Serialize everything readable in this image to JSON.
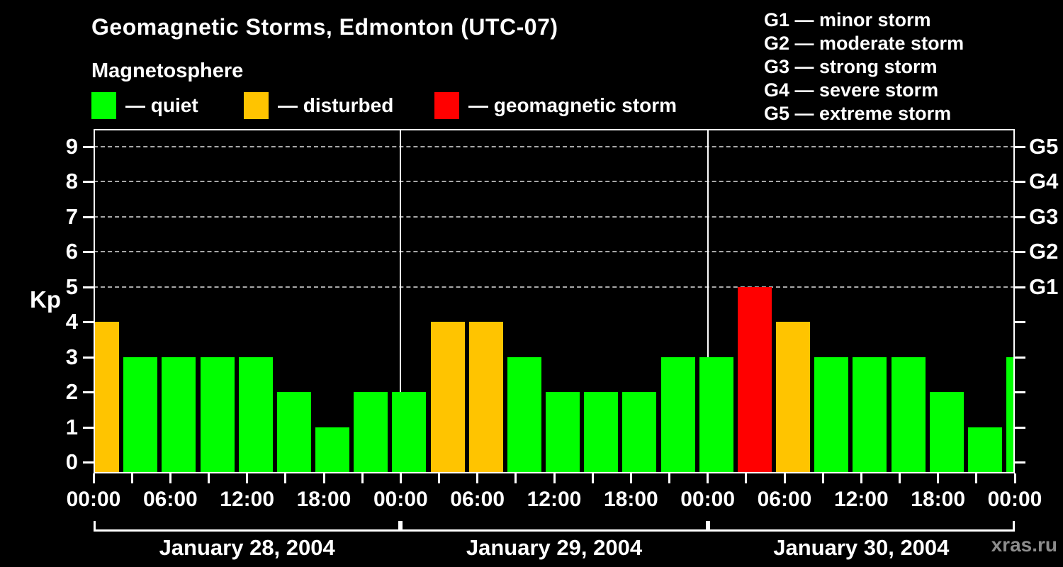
{
  "header": {
    "title": "Geomagnetic Storms, Edmonton (UTC-07)",
    "subtitle": "Magnetosphere"
  },
  "legend": {
    "items": [
      {
        "label": "— quiet",
        "color": "#00ff00"
      },
      {
        "label": "— disturbed",
        "color": "#ffc400"
      },
      {
        "label": "— geomagnetic storm",
        "color": "#ff0000"
      }
    ]
  },
  "storm_scale": {
    "items": [
      {
        "text": "G1 — minor storm"
      },
      {
        "text": "G2 — moderate storm"
      },
      {
        "text": "G3 — strong storm"
      },
      {
        "text": "G4 — severe storm"
      },
      {
        "text": "G5 — extreme storm"
      }
    ]
  },
  "watermark": "xras.ru",
  "chart_data": {
    "type": "bar",
    "title": "Geomagnetic Storms, Edmonton (UTC-07)",
    "subtitle": "Magnetosphere",
    "ylabel": "Kp",
    "y_ticks": [
      0,
      1,
      2,
      3,
      4,
      5,
      6,
      7,
      8,
      9
    ],
    "ylim": [
      -0.35,
      9.5
    ],
    "gridlines_kp": [
      5,
      6,
      7,
      8,
      9
    ],
    "grid": "dashed horizontal lines at Kp 5 through 9",
    "right_axis": [
      {
        "kp": 5,
        "label": "G1"
      },
      {
        "kp": 6,
        "label": "G2"
      },
      {
        "kp": 7,
        "label": "G3"
      },
      {
        "kp": 8,
        "label": "G4"
      },
      {
        "kp": 9,
        "label": "G5"
      }
    ],
    "x_tick_labels": [
      "00:00",
      "06:00",
      "12:00",
      "18:00",
      "00:00",
      "06:00",
      "12:00",
      "18:00",
      "00:00",
      "06:00",
      "12:00",
      "18:00",
      "00:00"
    ],
    "period_hours": 3,
    "period_start_times": [
      "00:00",
      "03:00",
      "06:00",
      "09:00",
      "12:00",
      "15:00",
      "18:00",
      "21:00"
    ],
    "days": [
      {
        "date": "January 28, 2004",
        "kp": [
          4,
          3,
          3,
          3,
          3,
          2,
          1,
          2
        ]
      },
      {
        "date": "January 29, 2004",
        "kp": [
          2,
          4,
          4,
          3,
          2,
          2,
          2,
          3
        ]
      },
      {
        "date": "January 30, 2004",
        "kp": [
          3,
          5,
          4,
          3,
          3,
          3,
          2,
          1
        ]
      }
    ],
    "next_period_clipped_kp": 3,
    "colors": {
      "quiet": "#00ff00",
      "disturbed": "#ffc400",
      "storm": "#ff0000"
    },
    "color_rule": {
      "quiet_kp_max": 3,
      "disturbed_kp": 4,
      "storm_kp_min": 5
    },
    "legend_position": "top-left (bar colors) and top-right (G-scale)"
  }
}
